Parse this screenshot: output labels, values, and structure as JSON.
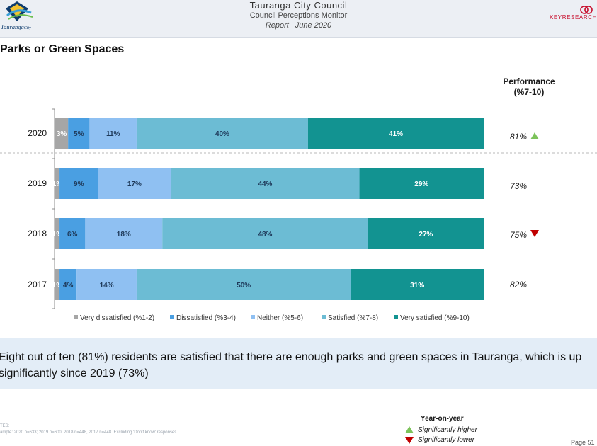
{
  "header": {
    "logo_text": "Tauranga",
    "logo_text_suffix": "City",
    "title": "Tauranga City Council",
    "subtitle": "Council Perceptions Monitor",
    "report": "Report | June 2020",
    "right_logo": "KEYRESEARCH"
  },
  "section_title": "Parks or Green Spaces",
  "performance": {
    "heading_line1": "Performance",
    "heading_line2": "(%7-10)",
    "rows": [
      {
        "year": "2020",
        "value": "81%",
        "indicator": "up"
      },
      {
        "year": "2019",
        "value": "73%",
        "indicator": "none"
      },
      {
        "year": "2018",
        "value": "75%",
        "indicator": "down"
      },
      {
        "year": "2017",
        "value": "82%",
        "indicator": "none"
      }
    ]
  },
  "colors": {
    "very_dissatisfied": "#a6a6a6",
    "dissatisfied": "#4a9fe2",
    "neither": "#8fc0f2",
    "satisfied": "#6cbcd4",
    "very_satisfied": "#129391",
    "up": "#7cc35a",
    "down": "#c00000"
  },
  "chart_data": {
    "type": "bar",
    "orientation": "horizontal-stacked",
    "categories": [
      "2020",
      "2019",
      "2018",
      "2017"
    ],
    "series": [
      {
        "name": "Very dissatisfied (%1-2)",
        "values": [
          3,
          1,
          1,
          1
        ],
        "labels": [
          "3%",
          "1%",
          "1%",
          "1%"
        ]
      },
      {
        "name": "Dissatisfied (%3-4)",
        "values": [
          5,
          9,
          6,
          4
        ],
        "labels": [
          "5%",
          "9%",
          "6%",
          "4%"
        ]
      },
      {
        "name": "Neither (%5-6)",
        "values": [
          11,
          17,
          18,
          14
        ],
        "labels": [
          "11%",
          "17%",
          "18%",
          "14%"
        ]
      },
      {
        "name": "Satisfied (%7-8)",
        "values": [
          40,
          44,
          48,
          50
        ],
        "labels": [
          "40%",
          "44%",
          "48%",
          "50%"
        ]
      },
      {
        "name": "Very satisfied (%9-10)",
        "values": [
          41,
          29,
          27,
          31
        ],
        "labels": [
          "41%",
          "29%",
          "27%",
          "31%"
        ]
      }
    ],
    "xlim": [
      0,
      100
    ],
    "legend": "bottom"
  },
  "summary": "Eight out of ten (81%) residents are satisfied that there are enough parks and green spaces in Tauranga, which is up significantly since 2019 (73%)",
  "notes": {
    "line1": "TES:",
    "line2": "ample: 2020 n=633; 2019 n=600, 2018 n=448, 2017 n=448. Excluding 'Don't know' responses."
  },
  "yoy": {
    "heading": "Year-on-year",
    "higher": "Significantly higher",
    "lower": "Significantly lower"
  },
  "page_number": "Page 51"
}
